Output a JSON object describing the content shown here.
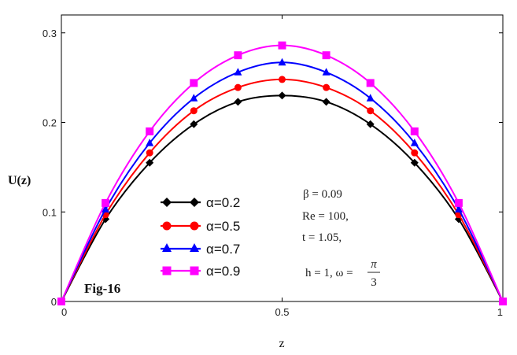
{
  "colors": {
    "alpha_02": "#000000",
    "alpha_05": "#ff0000",
    "alpha_07": "#0000ff",
    "alpha_09": "#ff00ff"
  },
  "chart_data": {
    "type": "line",
    "xlabel": "z",
    "ylabel": "U(z)",
    "xlim": [
      0,
      1
    ],
    "ylim": [
      0,
      0.32
    ],
    "x_ticks": [
      {
        "value": 0,
        "label": "0"
      },
      {
        "value": 0.5,
        "label": "0.5"
      },
      {
        "value": 1,
        "label": "1"
      }
    ],
    "y_ticks": [
      {
        "value": 0,
        "label": "0"
      },
      {
        "value": 0.1,
        "label": "0.1"
      },
      {
        "value": 0.2,
        "label": "0.2"
      },
      {
        "value": 0.3,
        "label": "0.3"
      }
    ],
    "grid": false,
    "legend_position": "lower-left",
    "x": [
      0,
      0.1,
      0.2,
      0.3,
      0.4,
      0.5,
      0.6,
      0.7,
      0.8,
      0.9,
      1.0
    ],
    "series": [
      {
        "name": "α=0.2",
        "color": "#000000",
        "marker": "diamond",
        "values": [
          0,
          0.092,
          0.155,
          0.198,
          0.223,
          0.23,
          0.223,
          0.198,
          0.155,
          0.092,
          0
        ]
      },
      {
        "name": "α=0.5",
        "color": "#ff0000",
        "marker": "circle",
        "values": [
          0,
          0.097,
          0.166,
          0.213,
          0.239,
          0.248,
          0.239,
          0.213,
          0.166,
          0.097,
          0
        ]
      },
      {
        "name": "α=0.7",
        "color": "#0000ff",
        "marker": "triangle",
        "values": [
          0,
          0.103,
          0.177,
          0.227,
          0.256,
          0.267,
          0.256,
          0.227,
          0.177,
          0.103,
          0
        ]
      },
      {
        "name": "α=0.9",
        "color": "#ff00ff",
        "marker": "square",
        "values": [
          0,
          0.11,
          0.19,
          0.244,
          0.275,
          0.286,
          0.275,
          0.244,
          0.19,
          0.11,
          0
        ]
      }
    ],
    "annotations": {
      "fig_label": "Fig-16",
      "beta_line": "β = 0.09",
      "re_line": "Re = 100,",
      "t_line": "t = 1.05,",
      "h_omega_line": "h = 1, ω =",
      "pi_text": "π",
      "three_text": "3"
    }
  }
}
